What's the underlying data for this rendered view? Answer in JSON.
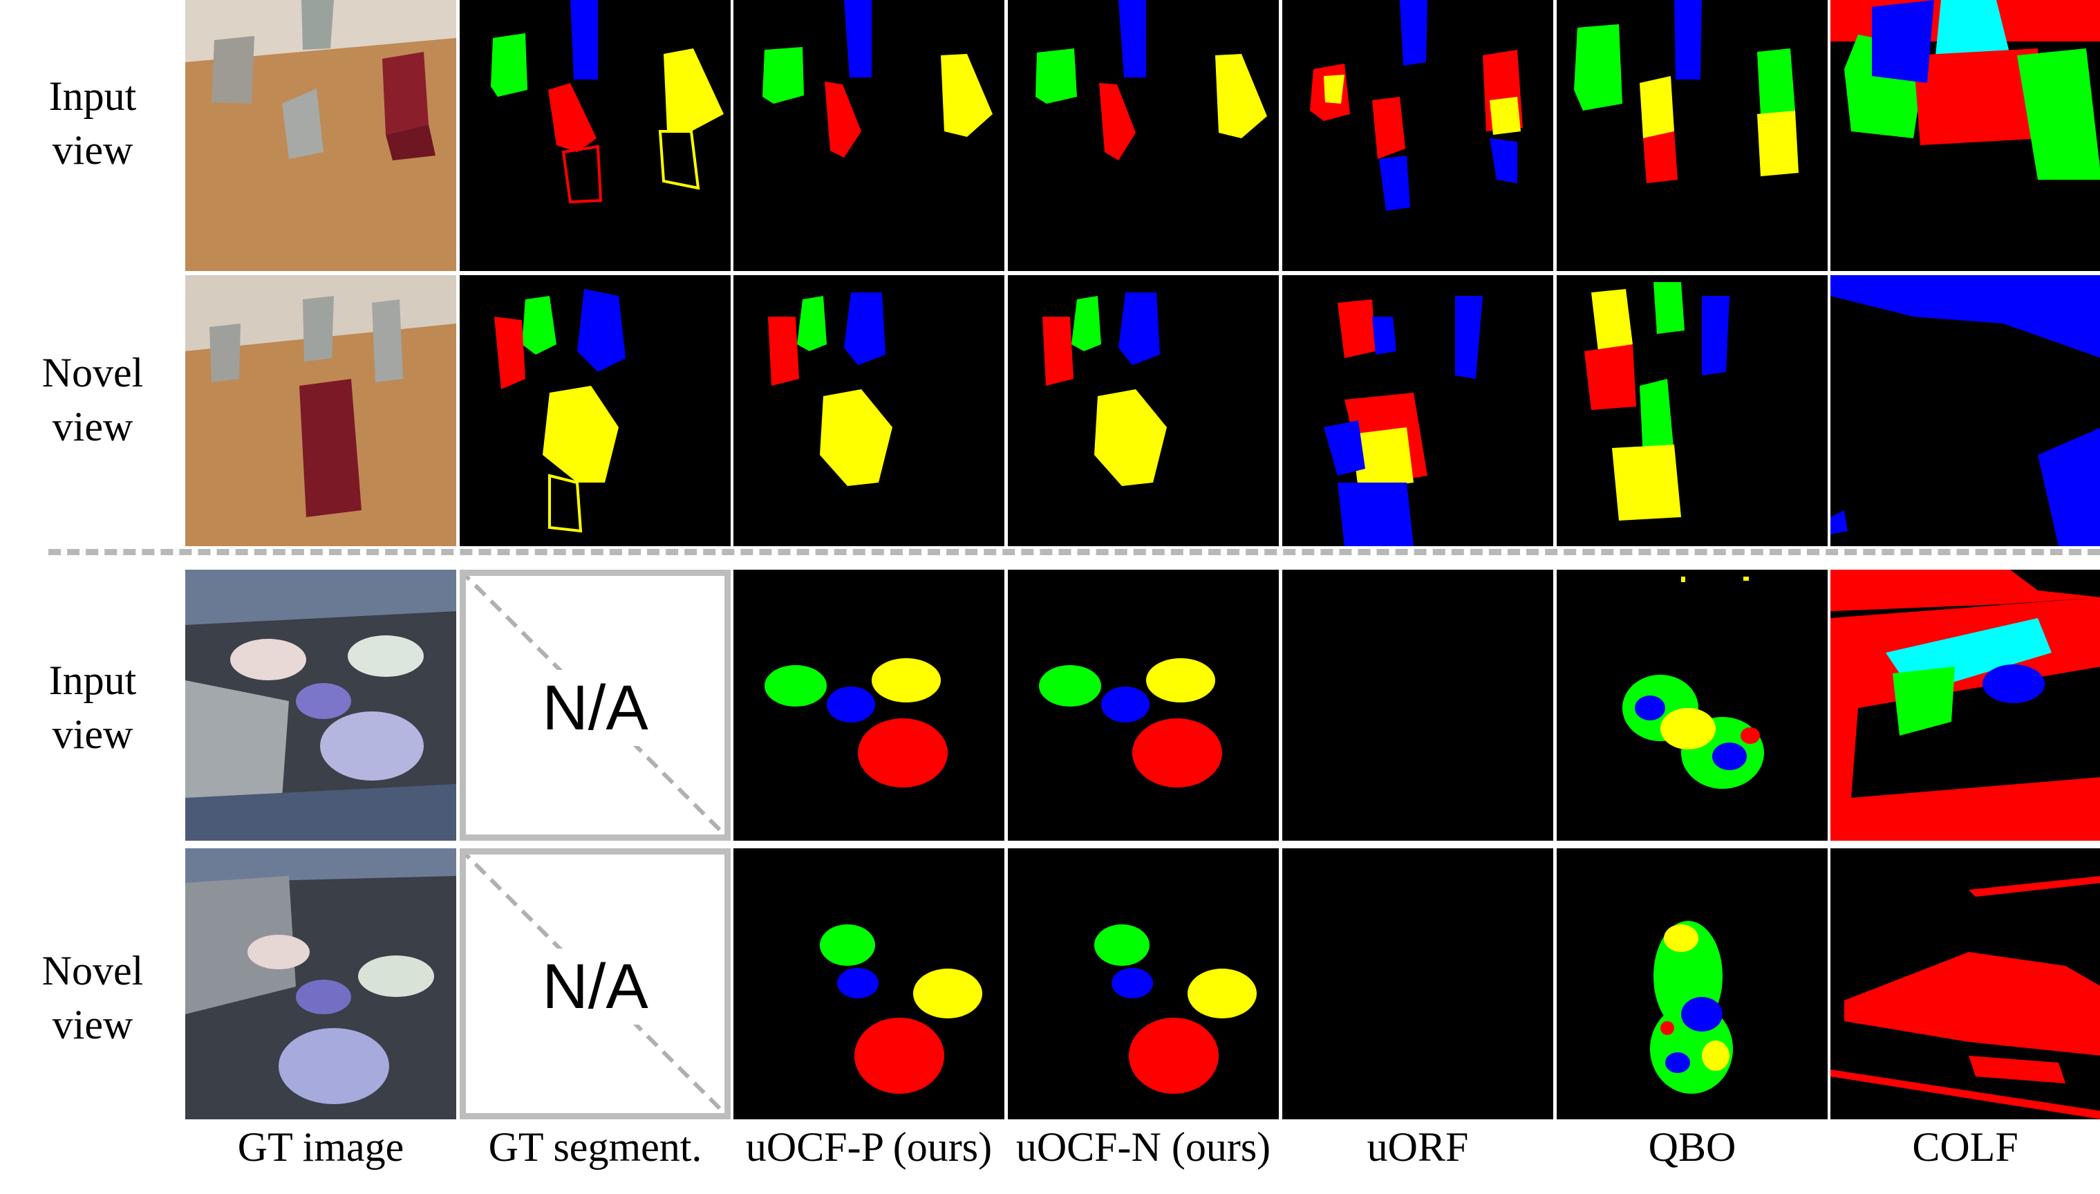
{
  "row_labels": {
    "r1_line1": "Input",
    "r1_line2": "view",
    "r2_line1": "Novel",
    "r2_line2": "view",
    "r3_line1": "Input",
    "r3_line2": "view",
    "r4_line1": "Novel",
    "r4_line2": "view"
  },
  "column_labels": {
    "gt_image": "GT image",
    "gt_segment": "GT segment.",
    "uocf_p": "uOCF-P (ours)",
    "uocf_n": "uOCF-N (ours)",
    "uorf": "uORF",
    "qbo": "QBO",
    "colf": "COLF"
  },
  "na_text": "N/A",
  "colors": {
    "seg_red": "#ff0000",
    "seg_green": "#00ff00",
    "seg_blue": "#0000ff",
    "seg_yellow": "#ffff00",
    "seg_cyan": "#00ffff",
    "background": "#000000",
    "divider": "#b8b8b8"
  }
}
